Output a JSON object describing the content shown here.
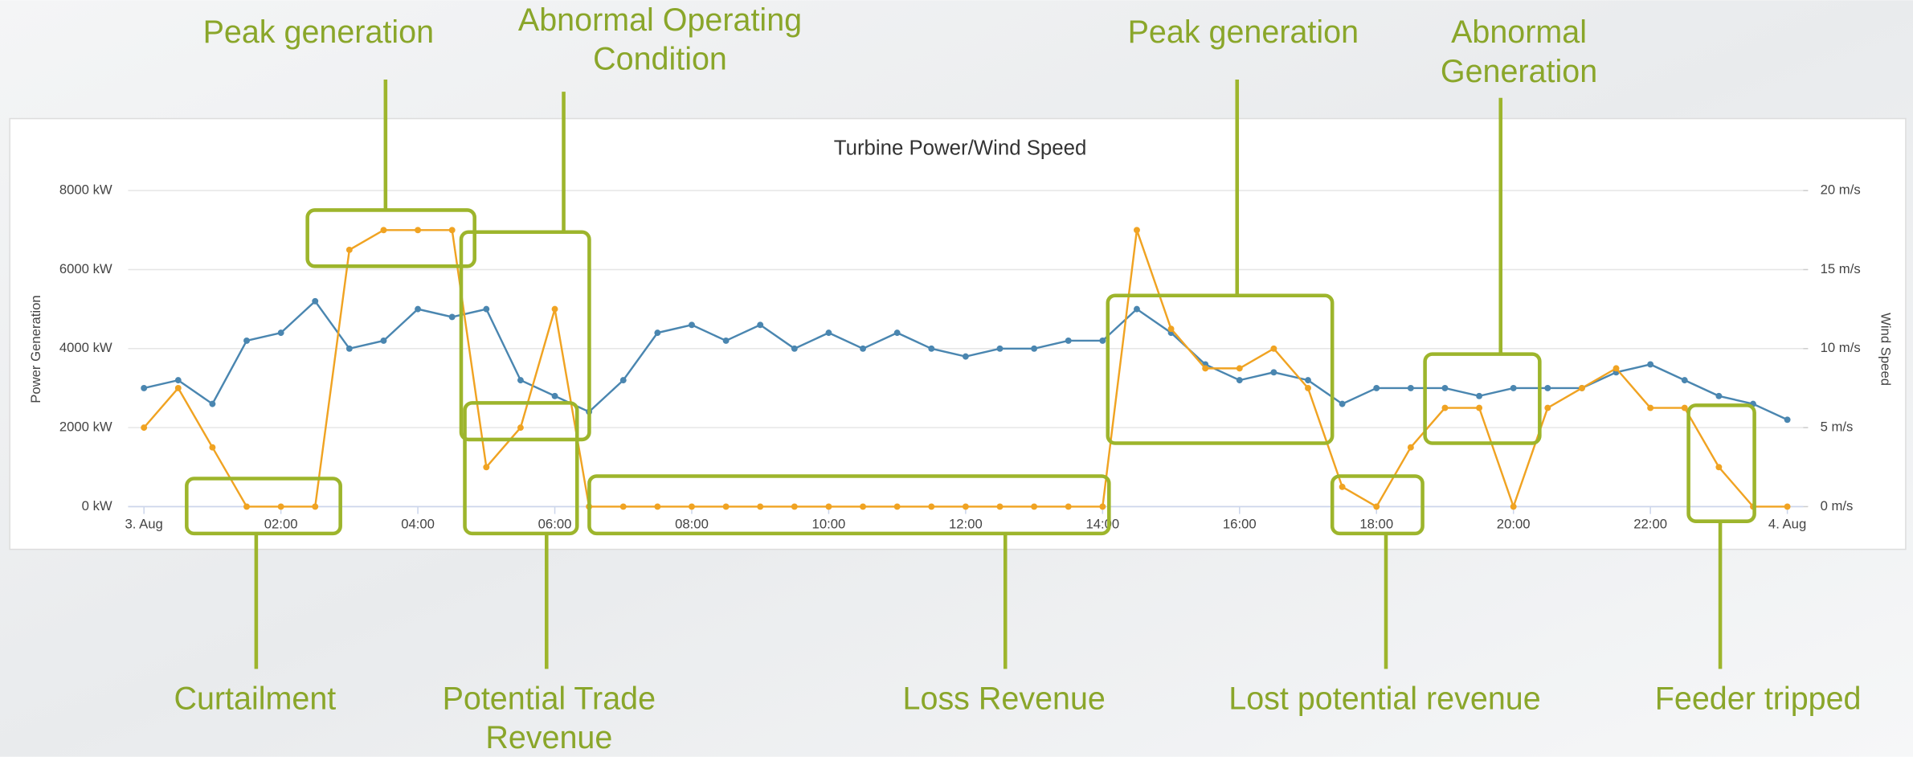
{
  "chart_data": {
    "type": "line",
    "title": "Turbine Power/Wind Speed",
    "y_label": "Power Generation",
    "y2_label": "Wind Speed",
    "x": [
      0,
      0.5,
      1,
      1.5,
      2,
      2.5,
      3,
      3.5,
      4,
      4.5,
      5,
      5.5,
      6,
      6.5,
      7,
      7.5,
      8,
      8.5,
      9,
      9.5,
      10,
      10.5,
      11,
      11.5,
      12,
      12.5,
      13,
      13.5,
      14,
      14.5,
      15,
      15.5,
      16,
      16.5,
      17,
      17.5,
      18,
      18.5,
      19,
      19.5,
      20,
      20.5,
      21,
      21.5,
      22,
      22.5,
      23,
      23.5,
      24
    ],
    "xlim": [
      0,
      24
    ],
    "xticks": [
      {
        "value": 0,
        "label": "3. Aug"
      },
      {
        "value": 2,
        "label": "02:00"
      },
      {
        "value": 4,
        "label": "04:00"
      },
      {
        "value": 6,
        "label": "06:00"
      },
      {
        "value": 8,
        "label": "08:00"
      },
      {
        "value": 10,
        "label": "10:00"
      },
      {
        "value": 12,
        "label": "12:00"
      },
      {
        "value": 14,
        "label": "14:00"
      },
      {
        "value": 16,
        "label": "16:00"
      },
      {
        "value": 18,
        "label": "18:00"
      },
      {
        "value": 20,
        "label": "20:00"
      },
      {
        "value": 22,
        "label": "22:00"
      },
      {
        "value": 24,
        "label": "4. Aug"
      }
    ],
    "ylim": [
      0,
      8000
    ],
    "yticks": [
      {
        "value": 0,
        "label": "0 kW"
      },
      {
        "value": 2000,
        "label": "2000 kW"
      },
      {
        "value": 4000,
        "label": "4000 kW"
      },
      {
        "value": 6000,
        "label": "6000 kW"
      },
      {
        "value": 8000,
        "label": "8000 kW"
      }
    ],
    "y2lim": [
      0,
      20
    ],
    "y2ticks": [
      {
        "value": 0,
        "label": "0 m/s"
      },
      {
        "value": 5,
        "label": "5 m/s"
      },
      {
        "value": 10,
        "label": "10 m/s"
      },
      {
        "value": 15,
        "label": "15 m/s"
      },
      {
        "value": 20,
        "label": "20 m/s"
      }
    ],
    "grid": true,
    "series": [
      {
        "color": "#4a86b0",
        "axis": "y2",
        "values": [
          7.5,
          8,
          6.5,
          10.5,
          11,
          13,
          10,
          10.5,
          12.5,
          12,
          12.5,
          8,
          7,
          6,
          8,
          11,
          11.5,
          10.5,
          11.5,
          10,
          11,
          10,
          11,
          10,
          9.5,
          10,
          10,
          10.5,
          10.5,
          12.5,
          11,
          9,
          8,
          8.5,
          8,
          6.5,
          7.5,
          7.5,
          7.5,
          7,
          7.5,
          7.5,
          7.5,
          8.5,
          9,
          8,
          7,
          6.5,
          5.5
        ]
      },
      {
        "color": "#f0a322",
        "values": [
          2000,
          3000,
          1500,
          0,
          0,
          0,
          6500,
          7000,
          7000,
          7000,
          1000,
          2000,
          5000,
          0,
          0,
          0,
          0,
          0,
          0,
          0,
          0,
          0,
          0,
          0,
          0,
          0,
          0,
          0,
          0,
          7000,
          4500,
          3500,
          3500,
          4000,
          3000,
          500,
          0,
          1500,
          2500,
          2500,
          0,
          2500,
          3000,
          3500,
          2500,
          2500,
          1000,
          0,
          0
        ]
      }
    ],
    "annotations": [
      {
        "lines": [
          "Peak generation"
        ]
      },
      {
        "lines": [
          "Abnormal Operating",
          "Condition"
        ]
      },
      {
        "lines": [
          "Peak generation"
        ]
      },
      {
        "lines": [
          "Abnormal",
          "Generation"
        ]
      },
      {
        "lines": [
          "Curtailment"
        ]
      },
      {
        "lines": [
          "Potential Trade",
          "Revenue"
        ]
      },
      {
        "lines": [
          "Loss Revenue"
        ]
      },
      {
        "lines": [
          "Lost potential revenue"
        ]
      },
      {
        "lines": [
          "Feeder tripped"
        ]
      }
    ]
  }
}
